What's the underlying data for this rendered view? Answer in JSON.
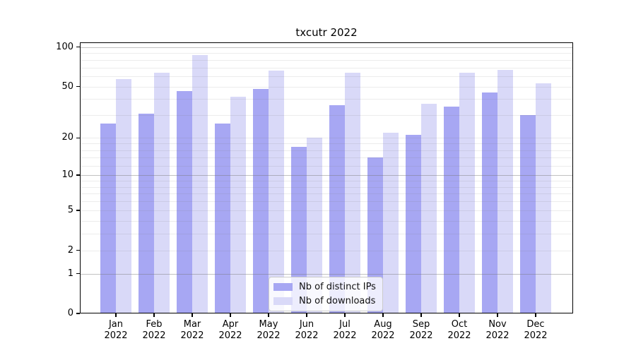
{
  "figure_title": "txcutr 2022",
  "chart_data": {
    "type": "bar",
    "title": "txcutr 2022",
    "categories": [
      "Jan",
      "Feb",
      "Mar",
      "Apr",
      "May",
      "Jun",
      "Jul",
      "Aug",
      "Sep",
      "Oct",
      "Nov",
      "Dec"
    ],
    "year_label": "2022",
    "series": [
      {
        "name": "Nb of distinct IPs",
        "color": "#a7a7f3",
        "values": [
          26,
          31,
          46,
          26,
          48,
          17,
          36,
          14,
          21,
          35,
          45,
          30
        ]
      },
      {
        "name": "Nb of downloads",
        "color": "#d9d9f8",
        "values": [
          57,
          64,
          87,
          42,
          66,
          20,
          64,
          22,
          37,
          64,
          67,
          53
        ]
      }
    ],
    "yscale": "log1p",
    "ylim": [
      0,
      108
    ],
    "yticks": [
      100,
      50,
      20,
      10,
      5,
      2,
      1,
      0
    ],
    "major_gridlines": [
      1,
      10,
      100
    ],
    "minor_gridlines": [
      2,
      3,
      4,
      5,
      6,
      7,
      8,
      9,
      12,
      14,
      16,
      18,
      20,
      30,
      40,
      50,
      60,
      70,
      80,
      90
    ],
    "grid": true,
    "legend_position": "lower center",
    "xlabel": "",
    "ylabel": ""
  },
  "colors": {
    "background": "#ffffff",
    "spine": "#000000",
    "grid_major": "#bdbdbd",
    "grid_minor": "#ececec",
    "legend_border": "#cccccc",
    "legend_background": "rgba(255,255,255,0.8)",
    "text": "#000000"
  }
}
